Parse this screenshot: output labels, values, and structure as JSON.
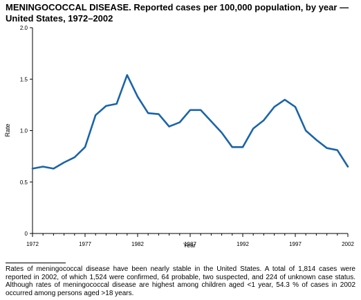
{
  "title": "MENINGOCOCCAL DISEASE. Reported cases per 100,000 population, by year — United States, 1972–2002",
  "footnote": "Rates of meningococcal disease have been nearly stable in the United States. A total of 1,814 cases were reported in 2002, of which 1,524 were confirmed, 64 probable, two suspected, and 224 of unknown case status. Although rates of meningococcal disease are highest among children aged <1 year, 54.3 % of cases in 2002 occurred among persons aged >18 years.",
  "chart_data": {
    "type": "line",
    "xlabel": "Year",
    "ylabel": "Rate",
    "xlim": [
      1972,
      2002
    ],
    "ylim": [
      0,
      2.0
    ],
    "x_ticks": [
      "1972",
      "1977",
      "1982",
      "1987",
      "1992",
      "1997",
      "2002"
    ],
    "y_ticks": [
      "0",
      "0.5",
      "1.0",
      "1.5",
      "2.0"
    ],
    "grid": false,
    "line_color": "#1a64a8",
    "x": [
      1972,
      1973,
      1974,
      1975,
      1976,
      1977,
      1978,
      1979,
      1980,
      1981,
      1982,
      1983,
      1984,
      1985,
      1986,
      1987,
      1988,
      1989,
      1990,
      1991,
      1992,
      1993,
      1994,
      1995,
      1996,
      1997,
      1998,
      1999,
      2000,
      2001,
      2002
    ],
    "values": [
      0.63,
      0.65,
      0.63,
      0.69,
      0.74,
      0.84,
      1.15,
      1.24,
      1.26,
      1.54,
      1.33,
      1.17,
      1.16,
      1.04,
      1.08,
      1.2,
      1.2,
      1.09,
      0.98,
      0.84,
      0.84,
      1.02,
      1.1,
      1.23,
      1.3,
      1.23,
      1.0,
      0.91,
      0.83,
      0.81,
      0.65
    ]
  }
}
